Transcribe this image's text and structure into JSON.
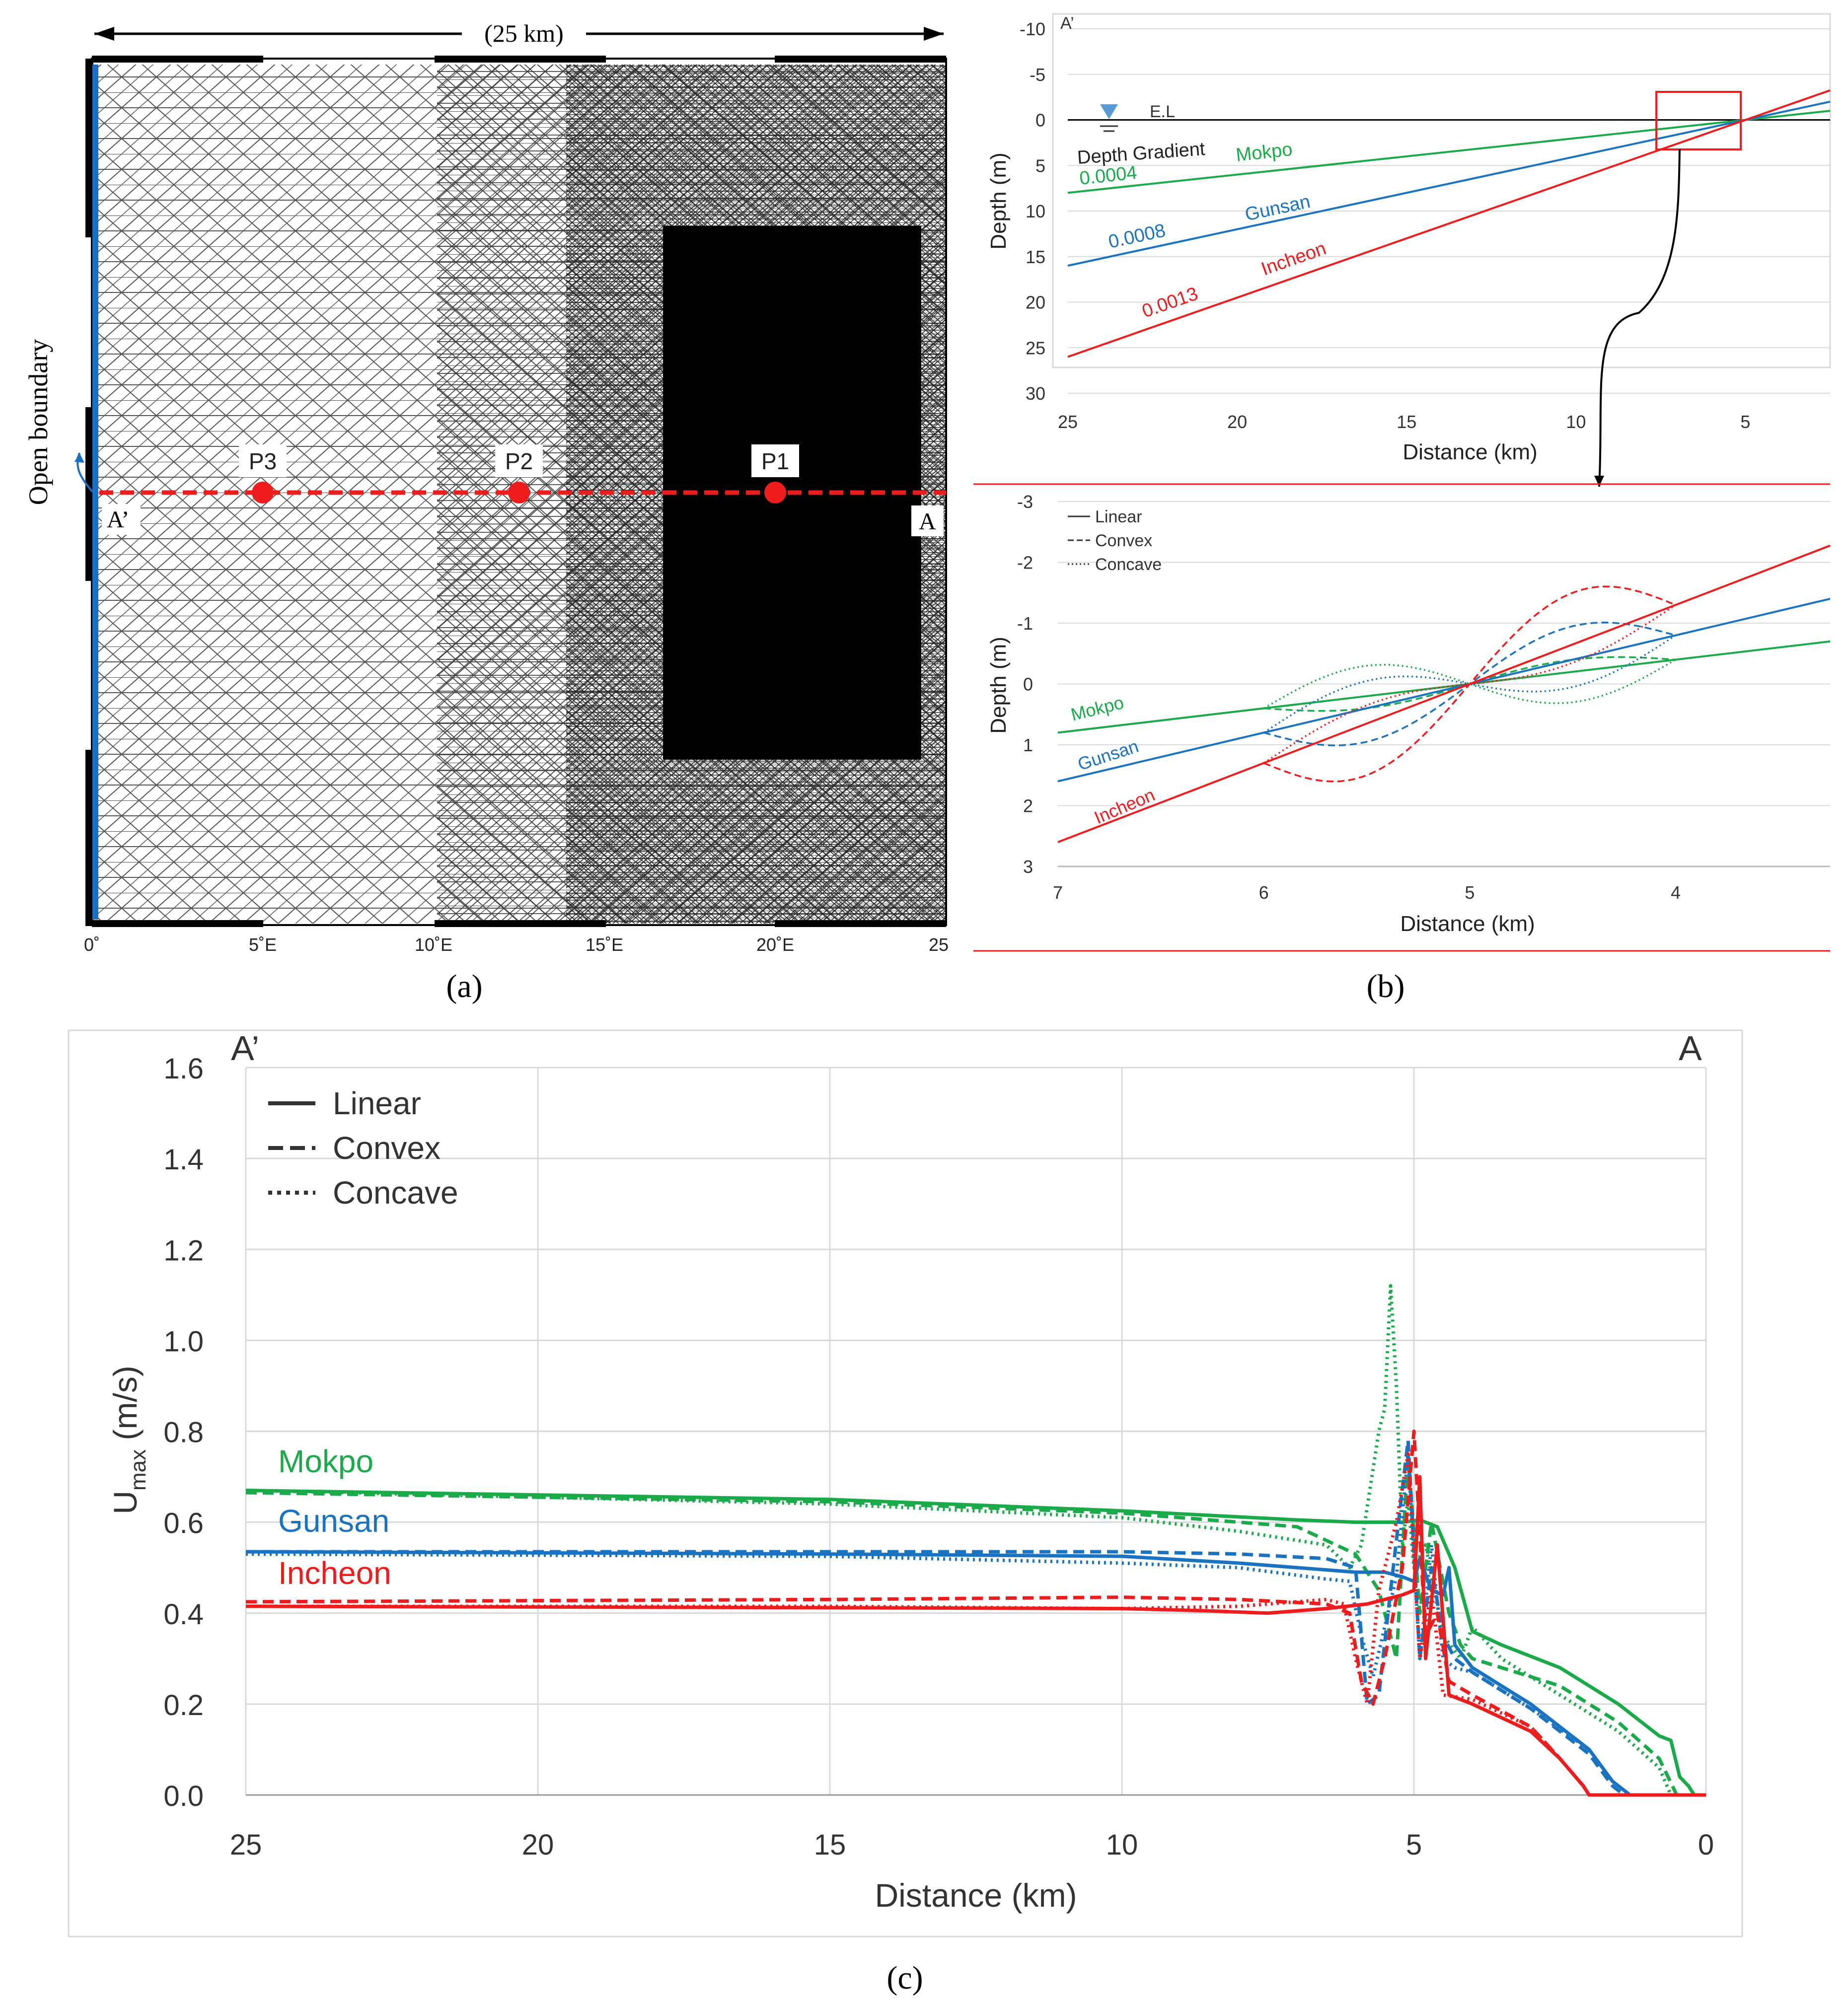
{
  "colors": {
    "mokpo": "#1aaa4a",
    "gunsan": "#1a73c0",
    "incheon": "#ee1c1c",
    "grid": "#d9d9d9",
    "axis": "#000000",
    "boundary": "#1a6fc4"
  },
  "panel_labels": {
    "a": "(a)",
    "b": "(b)",
    "c": "(c)"
  },
  "mesh_panel": {
    "scale_label": "(25 km)",
    "open_boundary_label": "Open boundary",
    "section_start": "A’",
    "section_end": "A",
    "points": [
      {
        "label": "P3",
        "x_deg": 5
      },
      {
        "label": "P2",
        "x_deg": 12.5
      },
      {
        "label": "P1",
        "x_deg": 20
      }
    ],
    "x_ticks": [
      "0˚",
      "5˚E",
      "10˚E",
      "15˚E",
      "20˚E",
      "25"
    ]
  },
  "chart_data": [
    {
      "id": "b-top",
      "type": "line",
      "title": "",
      "section_label": "A’",
      "xlabel": "Distance (km)",
      "ylabel": "Depth (m)",
      "xlim": [
        25,
        2.5
      ],
      "ylim": [
        -10,
        30
      ],
      "x_ticks": [
        "25",
        "20",
        "15",
        "10",
        "5"
      ],
      "y_ticks": [
        "-10",
        "-5",
        "0",
        "5",
        "10",
        "15",
        "20",
        "25",
        "30"
      ],
      "water_level_label": "E.L",
      "gradient_label": "Depth Gradient",
      "series": [
        {
          "name": "Mokpo",
          "gradient": "0.0004",
          "x": [
            25,
            2.5
          ],
          "y": [
            8,
            -1
          ]
        },
        {
          "name": "Gunsan",
          "gradient": "0.0008",
          "x": [
            25,
            2.5
          ],
          "y": [
            16,
            -2
          ]
        },
        {
          "name": "Incheon",
          "gradient": "0.0013",
          "x": [
            25,
            2.5
          ],
          "y": [
            26,
            -3.25
          ]
        }
      ]
    },
    {
      "id": "b-zoom",
      "type": "line",
      "xlabel": "Distance (km)",
      "ylabel": "Depth (m)",
      "xlim": [
        7,
        3.25
      ],
      "ylim": [
        -3,
        3
      ],
      "x_ticks": [
        "7",
        "6",
        "5",
        "4"
      ],
      "y_ticks": [
        "-3",
        "-2",
        "-1",
        "0",
        "1",
        "2",
        "3"
      ],
      "legend": [
        "Linear",
        "Convex",
        "Concave"
      ],
      "series": [
        {
          "name": "Mokpo",
          "slope": 0.4,
          "linear_x": [
            7,
            3.25
          ],
          "linear_y": [
            0.8,
            -0.7
          ],
          "convex_amp": 0.2,
          "concave_amp": -0.5
        },
        {
          "name": "Gunsan",
          "slope": 0.8,
          "linear_x": [
            7,
            3.25
          ],
          "linear_y": [
            1.6,
            -1.4
          ],
          "convex_amp": 0.55,
          "concave_amp": -0.45
        },
        {
          "name": "Incheon",
          "slope": 1.3,
          "linear_x": [
            7,
            3.25
          ],
          "linear_y": [
            2.6,
            -2.275
          ],
          "convex_amp": 0.85,
          "concave_amp": -0.3
        }
      ]
    },
    {
      "id": "c",
      "type": "line",
      "xlabel": "Distance (km)",
      "ylabel": "U",
      "ylabel_sub": "max",
      "ylabel_unit": " (m/s)",
      "section_start": "A’",
      "section_end": "A",
      "xlim": [
        25,
        0
      ],
      "ylim": [
        0,
        1.6
      ],
      "x_ticks": [
        "25",
        "20",
        "15",
        "10",
        "5",
        "0"
      ],
      "y_ticks": [
        "0.0",
        "0.2",
        "0.4",
        "0.6",
        "0.8",
        "1.0",
        "1.2",
        "1.4",
        "1.6"
      ],
      "legend": [
        "Linear",
        "Convex",
        "Concave"
      ],
      "series": [
        {
          "name": "Mokpo",
          "style": "linear",
          "x": [
            25,
            15,
            10,
            7,
            6,
            5.2,
            4.9,
            4.6,
            4.3,
            4.0,
            3.5,
            2.5,
            1.5,
            0.8,
            0.6,
            0.45,
            0.3,
            0.2,
            0
          ],
          "y": [
            0.67,
            0.65,
            0.625,
            0.605,
            0.6,
            0.6,
            0.605,
            0.59,
            0.5,
            0.36,
            0.33,
            0.28,
            0.2,
            0.13,
            0.12,
            0.04,
            0.02,
            0,
            0
          ]
        },
        {
          "name": "Mokpo",
          "style": "convex",
          "x": [
            25,
            15,
            10,
            7,
            6,
            5.6,
            5.3,
            5.1,
            4.9,
            4.7,
            4.4,
            4.2,
            4.0,
            3.5,
            2.5,
            1.5,
            0.8,
            0.5,
            0
          ],
          "y": [
            0.665,
            0.645,
            0.62,
            0.59,
            0.53,
            0.45,
            0.3,
            0.75,
            0.4,
            0.6,
            0.4,
            0.33,
            0.3,
            0.28,
            0.24,
            0.16,
            0.08,
            0,
            0
          ]
        },
        {
          "name": "Mokpo",
          "style": "concave",
          "x": [
            25,
            15,
            10,
            8,
            6.5,
            6.1,
            5.9,
            5.6,
            5.5,
            5.4,
            5.3,
            5.2,
            5.1,
            5.0,
            4.8,
            4.5,
            4.2,
            4.0,
            3.5,
            2.5,
            1.5,
            0.8,
            0.6,
            0
          ],
          "y": [
            0.67,
            0.64,
            0.61,
            0.58,
            0.55,
            0.5,
            0.55,
            0.8,
            0.85,
            1.12,
            0.9,
            0.55,
            0.65,
            0.5,
            0.55,
            0.35,
            0.3,
            0.37,
            0.3,
            0.22,
            0.14,
            0.06,
            0,
            0
          ]
        },
        {
          "name": "Gunsan",
          "style": "linear",
          "x": [
            25,
            15,
            10,
            8,
            6,
            5.5,
            5.2,
            5.0,
            4.9,
            4.7,
            4.5,
            4.4,
            4.3,
            4.0,
            3.0,
            2.0,
            1.6,
            1.3,
            0
          ],
          "y": [
            0.535,
            0.53,
            0.525,
            0.51,
            0.49,
            0.49,
            0.48,
            0.47,
            0.52,
            0.45,
            0.44,
            0.5,
            0.33,
            0.28,
            0.2,
            0.1,
            0.03,
            0,
            0
          ]
        },
        {
          "name": "Gunsan",
          "style": "convex",
          "x": [
            25,
            15,
            10,
            8,
            6.5,
            6.0,
            5.8,
            5.6,
            5.4,
            5.1,
            4.9,
            4.7,
            4.5,
            4.3,
            4.0,
            3.0,
            2.0,
            1.6,
            1.4,
            0
          ],
          "y": [
            0.535,
            0.535,
            0.535,
            0.53,
            0.52,
            0.5,
            0.2,
            0.22,
            0.45,
            0.78,
            0.3,
            0.5,
            0.35,
            0.3,
            0.27,
            0.19,
            0.09,
            0.02,
            0,
            0
          ]
        },
        {
          "name": "Gunsan",
          "style": "concave",
          "x": [
            25,
            15,
            10,
            8,
            6.5,
            6.1,
            5.9,
            5.7,
            5.3,
            5.1,
            4.9,
            4.7,
            4.5,
            4.3,
            4.0,
            3.0,
            2.0,
            1.6,
            1.3,
            0
          ],
          "y": [
            0.53,
            0.525,
            0.51,
            0.5,
            0.475,
            0.47,
            0.35,
            0.26,
            0.48,
            0.75,
            0.3,
            0.55,
            0.3,
            0.28,
            0.27,
            0.19,
            0.1,
            0.03,
            0,
            0
          ]
        },
        {
          "name": "Incheon",
          "style": "linear",
          "x": [
            25,
            15,
            10,
            8.5,
            7.5,
            6.5,
            5.8,
            5.2,
            5.0,
            4.9,
            4.8,
            4.6,
            4.4,
            4.0,
            3.0,
            2.5,
            2.1,
            2.0,
            0
          ],
          "y": [
            0.415,
            0.412,
            0.41,
            0.405,
            0.4,
            0.41,
            0.42,
            0.44,
            0.45,
            0.7,
            0.3,
            0.55,
            0.22,
            0.2,
            0.14,
            0.08,
            0.02,
            0,
            0
          ]
        },
        {
          "name": "Incheon",
          "style": "convex",
          "x": [
            25,
            15,
            10,
            8,
            6.5,
            6.1,
            5.9,
            5.7,
            5.5,
            5.2,
            5.0,
            4.8,
            4.6,
            4.4,
            4.0,
            3.0,
            2.5,
            2.1,
            2.0,
            0
          ],
          "y": [
            0.425,
            0.43,
            0.435,
            0.43,
            0.42,
            0.4,
            0.25,
            0.2,
            0.3,
            0.5,
            0.8,
            0.35,
            0.4,
            0.25,
            0.22,
            0.15,
            0.08,
            0.02,
            0,
            0
          ]
        },
        {
          "name": "Incheon",
          "style": "concave",
          "x": [
            25,
            15,
            10,
            8,
            6.5,
            6.2,
            6.0,
            5.8,
            5.6,
            5.3,
            5.1,
            4.9,
            4.7,
            4.5,
            4.0,
            3.0,
            2.5,
            2.1,
            2.0,
            0
          ],
          "y": [
            0.415,
            0.415,
            0.41,
            0.415,
            0.43,
            0.42,
            0.3,
            0.2,
            0.45,
            0.6,
            0.75,
            0.3,
            0.45,
            0.22,
            0.21,
            0.15,
            0.08,
            0.02,
            0,
            0
          ]
        }
      ],
      "series_labels": [
        "Mokpo",
        "Gunsan",
        "Incheon"
      ]
    }
  ]
}
